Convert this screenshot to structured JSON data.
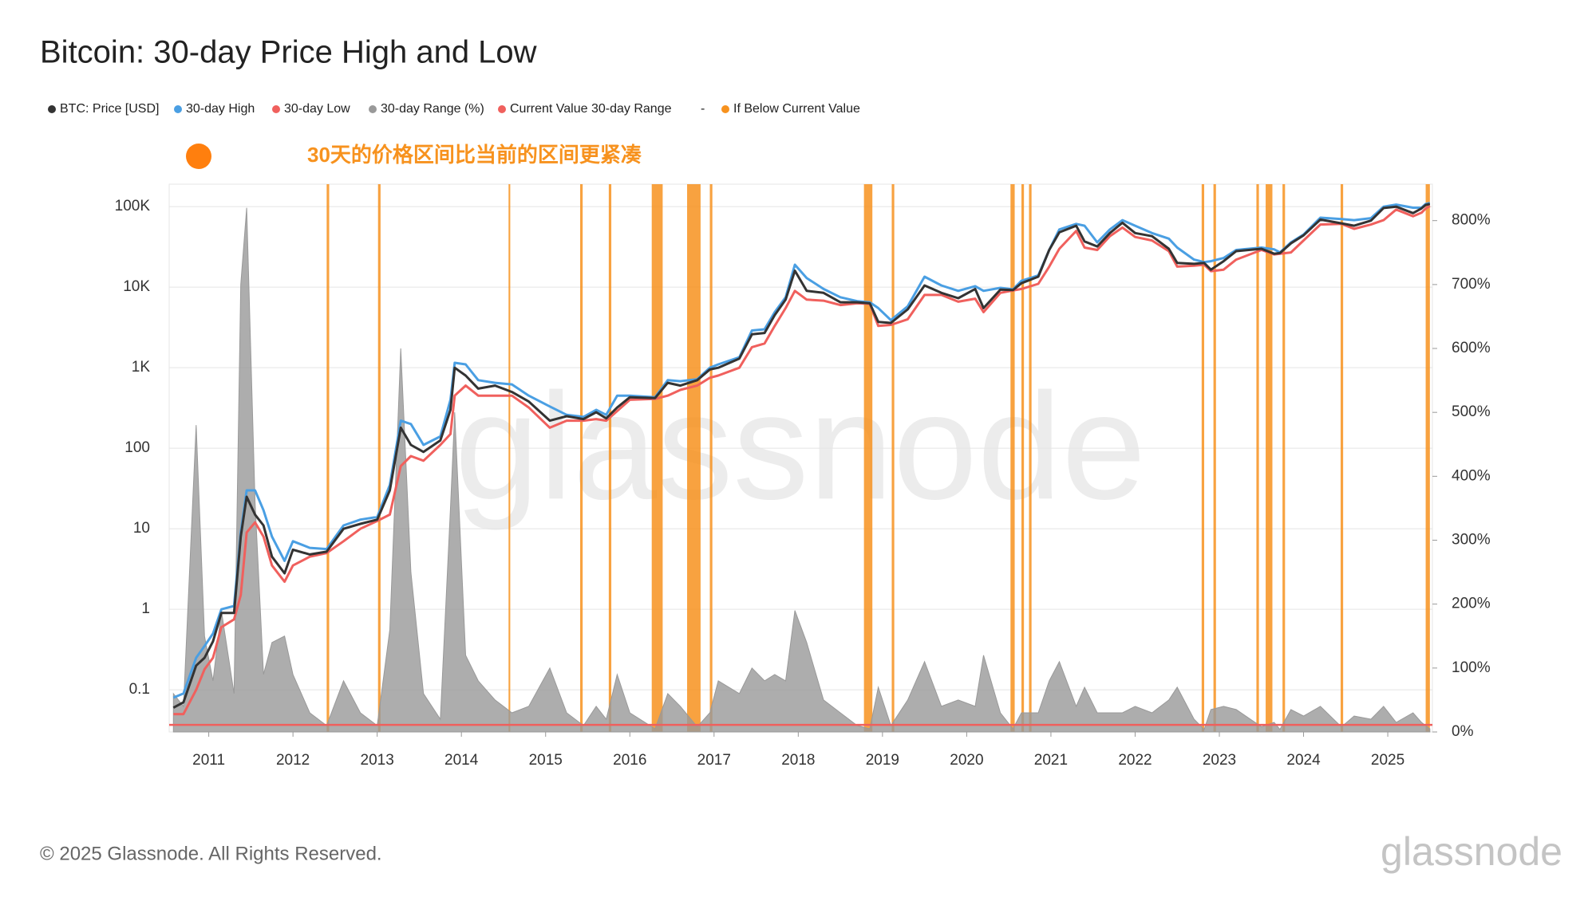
{
  "chart_data": {
    "type": "line",
    "title": "Bitcoin: 30-day Price High and Low",
    "annotation": "30天的价格区间比当前的区间更紧凑",
    "annotation_color": "#f7921e",
    "footer": "© 2025 Glassnode. All Rights Reserved.",
    "logo": "glassnode",
    "watermark": "glassnode",
    "legend_separator": "-",
    "log_y": true,
    "grid": true,
    "xlim": [
      2010.53,
      2025.53
    ],
    "xticks": [
      2011,
      2012,
      2013,
      2014,
      2015,
      2016,
      2017,
      2018,
      2019,
      2020,
      2021,
      2022,
      2023,
      2024,
      2025
    ],
    "ylim": [
      0.03,
      190000
    ],
    "yticks": [
      {
        "value": 100000,
        "label": "100K"
      },
      {
        "value": 10000,
        "label": "10K"
      },
      {
        "value": 1000,
        "label": "1K"
      },
      100,
      10,
      1,
      0.1
    ],
    "y2lim": [
      0,
      857
    ],
    "y2ticks": [
      {
        "value": 0,
        "label": "0%"
      },
      {
        "value": 100,
        "label": "100%"
      },
      {
        "value": 200,
        "label": "200%"
      },
      {
        "value": 300,
        "label": "300%"
      },
      {
        "value": 400,
        "label": "400%"
      },
      {
        "value": 500,
        "label": "500%"
      },
      {
        "value": 600,
        "label": "600%"
      },
      {
        "value": 700,
        "label": "700%"
      },
      {
        "value": 800,
        "label": "800%"
      }
    ],
    "x": [
      2010.58,
      2010.7,
      2010.85,
      2010.95,
      2011.05,
      2011.15,
      2011.3,
      2011.38,
      2011.45,
      2011.55,
      2011.65,
      2011.75,
      2011.9,
      2012.0,
      2012.2,
      2012.4,
      2012.6,
      2012.8,
      2013.0,
      2013.15,
      2013.28,
      2013.4,
      2013.55,
      2013.75,
      2013.87,
      2013.92,
      2014.05,
      2014.2,
      2014.4,
      2014.6,
      2014.8,
      2015.05,
      2015.25,
      2015.45,
      2015.6,
      2015.72,
      2015.85,
      2016.0,
      2016.3,
      2016.45,
      2016.6,
      2016.8,
      2016.95,
      2017.05,
      2017.3,
      2017.45,
      2017.6,
      2017.72,
      2017.85,
      2017.96,
      2018.1,
      2018.3,
      2018.5,
      2018.7,
      2018.85,
      2018.95,
      2019.1,
      2019.3,
      2019.5,
      2019.7,
      2019.9,
      2020.1,
      2020.2,
      2020.4,
      2020.55,
      2020.65,
      2020.85,
      2020.98,
      2021.1,
      2021.3,
      2021.4,
      2021.55,
      2021.7,
      2021.85,
      2022.0,
      2022.2,
      2022.4,
      2022.5,
      2022.7,
      2022.82,
      2022.9,
      2023.05,
      2023.2,
      2023.5,
      2023.65,
      2023.72,
      2023.85,
      2024.0,
      2024.2,
      2024.45,
      2024.6,
      2024.8,
      2024.95,
      2025.1,
      2025.3,
      2025.4,
      2025.45,
      2025.5
    ],
    "series": [
      {
        "name": "BTC: Price [USD]",
        "color": "#333333",
        "values": [
          0.06,
          0.07,
          0.2,
          0.25,
          0.4,
          0.9,
          0.9,
          8,
          25,
          15,
          11,
          4.5,
          2.8,
          5.5,
          4.8,
          5.2,
          10,
          11.5,
          13,
          30,
          180,
          110,
          90,
          125,
          300,
          1000,
          800,
          550,
          600,
          500,
          380,
          220,
          250,
          230,
          280,
          235,
          320,
          430,
          420,
          650,
          600,
          700,
          950,
          1000,
          1300,
          2600,
          2700,
          4500,
          7000,
          16000,
          9000,
          8500,
          6500,
          6500,
          6300,
          3700,
          3600,
          5300,
          10500,
          8500,
          7300,
          9500,
          5500,
          9300,
          9200,
          11200,
          13500,
          29000,
          48000,
          58000,
          37000,
          32000,
          47000,
          63000,
          47000,
          43000,
          30000,
          20000,
          19500,
          20000,
          16500,
          21000,
          28000,
          30000,
          26000,
          26500,
          35000,
          44000,
          69000,
          62000,
          58000,
          67000,
          96000,
          100000,
          83000,
          95000,
          105000,
          108000
        ]
      },
      {
        "name": "30-day High",
        "color": "#4a9fe3",
        "values": [
          0.08,
          0.09,
          0.25,
          0.35,
          0.5,
          1.0,
          1.1,
          9,
          30,
          30,
          17,
          8,
          4,
          7,
          5.8,
          5.6,
          11,
          13,
          14,
          35,
          220,
          200,
          110,
          140,
          400,
          1150,
          1100,
          700,
          650,
          620,
          450,
          330,
          260,
          245,
          300,
          260,
          450,
          450,
          430,
          700,
          680,
          720,
          1000,
          1100,
          1350,
          2900,
          3000,
          4900,
          7500,
          19000,
          13000,
          9500,
          7500,
          6700,
          6500,
          5500,
          3900,
          5800,
          13500,
          10500,
          9000,
          10300,
          9000,
          9800,
          9400,
          12000,
          14000,
          29000,
          52000,
          61000,
          58000,
          36000,
          52000,
          68000,
          58000,
          47000,
          40000,
          31000,
          22000,
          20500,
          21000,
          23000,
          29000,
          31000,
          29500,
          27000,
          36000,
          45000,
          73000,
          70000,
          68000,
          72000,
          100000,
          106000,
          97000,
          97000,
          108000,
          111000
        ]
      },
      {
        "name": "30-day Low",
        "color": "#f0605d",
        "values": [
          0.05,
          0.05,
          0.1,
          0.18,
          0.25,
          0.6,
          0.75,
          1.5,
          9,
          12,
          8,
          3.5,
          2.2,
          3.5,
          4.5,
          5.0,
          7,
          10,
          12.5,
          15,
          60,
          80,
          70,
          110,
          150,
          450,
          600,
          450,
          450,
          450,
          320,
          180,
          220,
          220,
          230,
          220,
          290,
          400,
          410,
          450,
          530,
          600,
          750,
          800,
          1000,
          1800,
          2000,
          3300,
          5500,
          9000,
          7000,
          6800,
          6000,
          6300,
          6200,
          3300,
          3400,
          4000,
          8000,
          8000,
          6600,
          7200,
          4900,
          8500,
          9100,
          9500,
          11000,
          18000,
          30000,
          50000,
          31000,
          29000,
          43000,
          55000,
          42000,
          38000,
          28000,
          18000,
          18500,
          19000,
          15800,
          16500,
          22000,
          29000,
          25500,
          26000,
          27000,
          38000,
          60000,
          61000,
          53000,
          60000,
          68000,
          92000,
          76000,
          84000,
          95000,
          102000
        ]
      },
      {
        "name": "30-day Range (%)",
        "color": "#999999",
        "axis": "y2",
        "values": [
          60,
          40,
          480,
          150,
          80,
          190,
          60,
          700,
          820,
          360,
          90,
          140,
          150,
          90,
          30,
          10,
          80,
          30,
          10,
          160,
          600,
          250,
          60,
          20,
          350,
          500,
          120,
          80,
          50,
          30,
          40,
          100,
          30,
          10,
          40,
          20,
          90,
          30,
          5,
          60,
          40,
          8,
          30,
          80,
          60,
          100,
          80,
          90,
          80,
          190,
          140,
          50,
          30,
          10,
          5,
          70,
          10,
          50,
          110,
          40,
          50,
          40,
          120,
          30,
          5,
          30,
          30,
          80,
          110,
          40,
          70,
          30,
          30,
          30,
          40,
          30,
          50,
          70,
          20,
          4,
          35,
          40,
          35,
          8,
          15,
          4,
          35,
          25,
          40,
          8,
          25,
          20,
          40,
          15,
          30,
          15,
          10,
          5
        ]
      }
    ],
    "reference_line": {
      "name": "Current Value 30-day Range",
      "color": "#f0605d",
      "axis": "y2",
      "value": 11
    },
    "highlight": {
      "name": "If Below Current Value",
      "color": "#f7921e",
      "periods": [
        [
          2012.4,
          2012.43
        ],
        [
          2013.01,
          2013.04
        ],
        [
          2014.56,
          2014.58
        ],
        [
          2015.41,
          2015.44
        ],
        [
          2015.75,
          2015.78
        ],
        [
          2016.26,
          2016.39
        ],
        [
          2016.68,
          2016.84
        ],
        [
          2016.95,
          2016.98
        ],
        [
          2018.78,
          2018.88
        ],
        [
          2019.11,
          2019.14
        ],
        [
          2020.52,
          2020.57
        ],
        [
          2020.65,
          2020.68
        ],
        [
          2020.74,
          2020.77
        ],
        [
          2022.79,
          2022.82
        ],
        [
          2022.93,
          2022.96
        ],
        [
          2023.44,
          2023.47
        ],
        [
          2023.55,
          2023.63
        ],
        [
          2023.75,
          2023.78
        ],
        [
          2024.44,
          2024.47
        ],
        [
          2025.45,
          2025.5
        ]
      ]
    }
  }
}
